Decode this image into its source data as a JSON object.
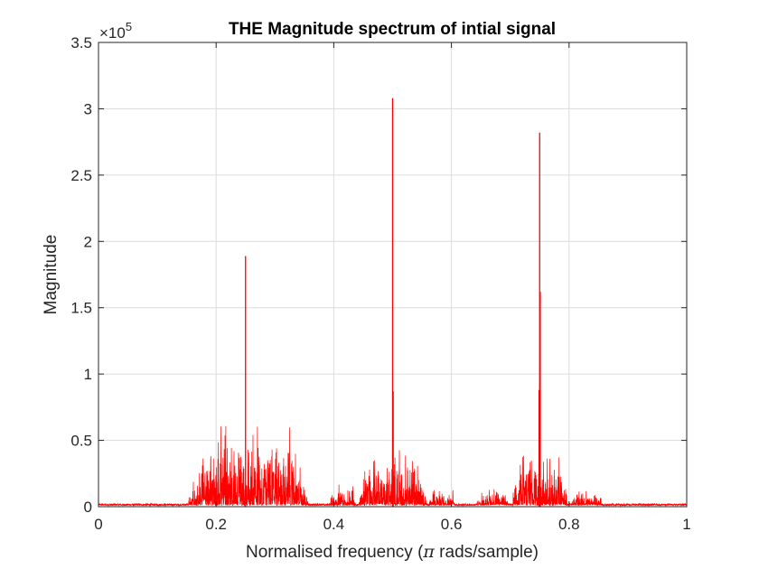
{
  "chart_data": {
    "type": "line",
    "title": "THE Magnitude spectrum of intial signal",
    "xlabel_prefix": "Normalised frequency (",
    "xlabel_symbol": "π",
    "xlabel_suffix": " rads/sample)",
    "ylabel": "Magnitude",
    "y_exponent_base": "×10",
    "y_exponent_power": "5",
    "xlim": [
      0,
      1
    ],
    "ylim": [
      0,
      3.5
    ],
    "y_scale": 100000,
    "grid": true,
    "line_color": "#ff0000",
    "x_ticks": [
      0,
      0.2,
      0.4,
      0.6,
      0.8,
      1
    ],
    "x_tick_labels": [
      "0",
      "0.2",
      "0.4",
      "0.6",
      "0.8",
      "1"
    ],
    "y_ticks": [
      0,
      0.5,
      1,
      1.5,
      2,
      2.5,
      3,
      3.5
    ],
    "y_tick_labels": [
      "0",
      "0.5",
      "1",
      "1.5",
      "2",
      "2.5",
      "3",
      "3.5"
    ],
    "peaks": [
      {
        "x": 0.25,
        "y": 189000
      },
      {
        "x": 0.5,
        "y": 308000
      },
      {
        "x": 0.75,
        "y": 282000
      },
      {
        "x": 0.751,
        "y": 162000
      },
      {
        "x": 0.501,
        "y": 87000
      },
      {
        "x": 0.749,
        "y": 88000
      }
    ],
    "noise_bands": [
      {
        "x_start": 0.15,
        "x_end": 0.36,
        "typical_max": 50000,
        "local_max": 63000
      },
      {
        "x_start": 0.39,
        "x_end": 0.44,
        "typical_max": 15000,
        "local_max": 18000
      },
      {
        "x_start": 0.44,
        "x_end": 0.56,
        "typical_max": 38000,
        "local_max": 43000
      },
      {
        "x_start": 0.56,
        "x_end": 0.61,
        "typical_max": 14000,
        "local_max": 16000
      },
      {
        "x_start": 0.64,
        "x_end": 0.7,
        "typical_max": 12000,
        "local_max": 14000
      },
      {
        "x_start": 0.7,
        "x_end": 0.8,
        "typical_max": 35000,
        "local_max": 39000
      },
      {
        "x_start": 0.8,
        "x_end": 0.86,
        "typical_max": 11000,
        "local_max": 13000
      }
    ],
    "baseline_level": 1500
  }
}
